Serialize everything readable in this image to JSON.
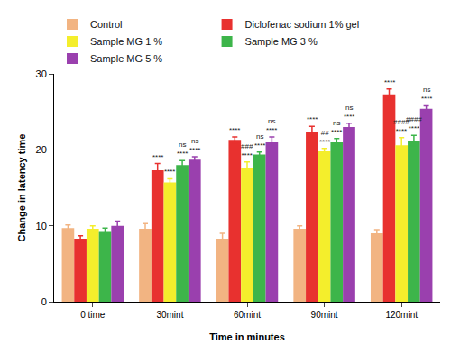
{
  "chart_data": {
    "type": "bar",
    "x_label": "Time in minutes",
    "y_label": "Change in latency time",
    "categories": [
      "0 time",
      "30mint",
      "60mint",
      "90mint",
      "120mint"
    ],
    "ylim": [
      0,
      30
    ],
    "yticks": [
      0,
      10,
      20,
      30
    ],
    "grid": false,
    "legend": "top",
    "series": [
      {
        "name": "Control",
        "color": "#F2B482",
        "values": [
          9.7,
          9.6,
          8.3,
          9.6,
          9.0
        ],
        "errors": [
          0.4,
          0.7,
          0.7,
          0.4,
          0.5
        ],
        "significance": [
          [],
          [],
          [],
          [],
          []
        ]
      },
      {
        "name": "Diclofenac sodium 1% gel",
        "color": "#E8312F",
        "values": [
          8.3,
          17.3,
          21.3,
          22.4,
          27.3
        ],
        "errors": [
          0.4,
          0.9,
          0.4,
          0.7,
          0.7
        ],
        "significance": [
          [],
          [
            "****"
          ],
          [
            "****"
          ],
          [
            "****"
          ],
          [
            "****"
          ]
        ]
      },
      {
        "name": "Sample MG 1 %",
        "color": "#F4EE2C",
        "values": [
          9.6,
          15.7,
          17.6,
          19.8,
          20.6
        ],
        "errors": [
          0.4,
          0.5,
          0.8,
          0.4,
          1.0
        ],
        "significance": [
          [],
          [
            "****"
          ],
          [
            "###",
            "****"
          ],
          [
            "##",
            "****"
          ],
          [
            "####",
            "****"
          ]
        ]
      },
      {
        "name": "Sample MG 3 %",
        "color": "#3DB54A",
        "values": [
          9.3,
          18.0,
          19.4,
          21.0,
          21.2
        ],
        "errors": [
          0.4,
          0.6,
          0.3,
          0.5,
          0.7
        ],
        "significance": [
          [],
          [
            "ns",
            "****"
          ],
          [
            "ns",
            "****"
          ],
          [
            "ns",
            "****"
          ],
          [
            "####",
            "****"
          ]
        ]
      },
      {
        "name": "Sample MG 5 %",
        "color": "#9A40AE",
        "values": [
          10.0,
          18.7,
          21.0,
          23.0,
          25.4
        ],
        "errors": [
          0.6,
          0.4,
          0.7,
          0.5,
          0.4
        ],
        "significance": [
          [],
          [
            "ns",
            "****"
          ],
          [
            "ns",
            "****"
          ],
          [
            "ns",
            "****"
          ],
          [
            "ns",
            "****"
          ]
        ]
      }
    ]
  }
}
